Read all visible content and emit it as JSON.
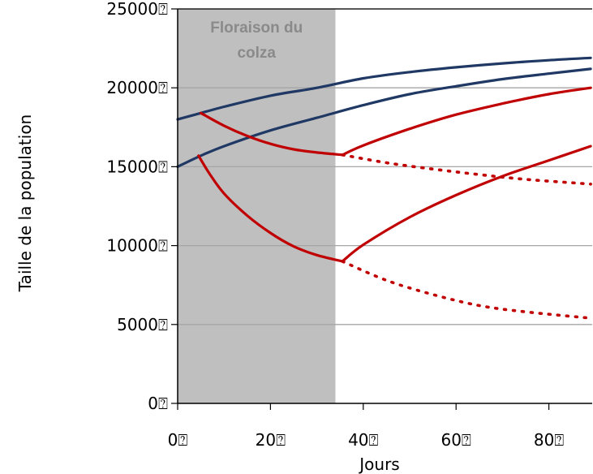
{
  "chart_data": {
    "type": "line",
    "xlabel": "Jours",
    "ylabel": "Taille de la population",
    "xlim": [
      0,
      89
    ],
    "ylim": [
      0,
      25000
    ],
    "x_ticks": [
      0,
      20,
      40,
      60,
      80
    ],
    "y_ticks": [
      0,
      5000,
      10000,
      15000,
      20000,
      25000
    ],
    "x_tick_labels": [
      "0",
      "20",
      "40",
      "60",
      "80"
    ],
    "y_tick_labels": [
      "0",
      "5000",
      "10000",
      "15000",
      "20000",
      "25000"
    ],
    "tick_suffix": "⍰",
    "grid": "horizontal",
    "legend": "none",
    "annotation": {
      "text_lines": [
        "Floraison du",
        "colza"
      ],
      "x_range": [
        0,
        34
      ]
    },
    "colors": {
      "blue": "#1f3864",
      "red": "#c00000",
      "shade": "#bfbfbf",
      "grid": "#a6a6a6",
      "shade_text": "#8a8a8a"
    },
    "series": [
      {
        "color": "#1f3864",
        "style": "solid",
        "x": [
          0,
          5,
          10,
          20,
          30,
          40,
          50,
          60,
          70,
          80,
          89
        ],
        "values": [
          18000,
          18400,
          18800,
          19500,
          20000,
          20600,
          21000,
          21300,
          21550,
          21750,
          21900
        ]
      },
      {
        "color": "#1f3864",
        "style": "solid",
        "x": [
          0,
          5,
          10,
          20,
          30,
          40,
          50,
          60,
          70,
          80,
          89
        ],
        "values": [
          15000,
          15700,
          16300,
          17300,
          18100,
          18900,
          19600,
          20100,
          20550,
          20900,
          21200
        ]
      },
      {
        "color": "#c00000",
        "style": "solid",
        "x": [
          5,
          10,
          15,
          20,
          25,
          30,
          35.5
        ],
        "values": [
          18400,
          17600,
          16950,
          16450,
          16100,
          15900,
          15750
        ]
      },
      {
        "color": "#c00000",
        "style": "solid",
        "x": [
          35.5,
          40,
          50,
          60,
          70,
          80,
          89
        ],
        "values": [
          15750,
          16350,
          17400,
          18300,
          19000,
          19600,
          20000
        ]
      },
      {
        "color": "#c00000",
        "style": "dotted",
        "x": [
          35.5,
          45,
          55,
          65,
          75,
          89
        ],
        "values": [
          15750,
          15250,
          14850,
          14500,
          14200,
          13900
        ]
      },
      {
        "color": "#c00000",
        "style": "solid",
        "x": [
          4.5,
          5.5,
          7,
          10,
          15,
          20,
          25,
          30,
          35.5
        ],
        "values": [
          15700,
          15200,
          14500,
          13300,
          11900,
          10800,
          9950,
          9400,
          9000
        ]
      },
      {
        "color": "#c00000",
        "style": "solid",
        "x": [
          35.5,
          40,
          50,
          60,
          70,
          80,
          89
        ],
        "values": [
          9000,
          10050,
          11800,
          13200,
          14400,
          15400,
          16300
        ]
      },
      {
        "color": "#c00000",
        "style": "dotted",
        "x": [
          35.5,
          45,
          55,
          65,
          75,
          89
        ],
        "values": [
          9000,
          7800,
          6900,
          6200,
          5800,
          5400
        ]
      }
    ]
  }
}
